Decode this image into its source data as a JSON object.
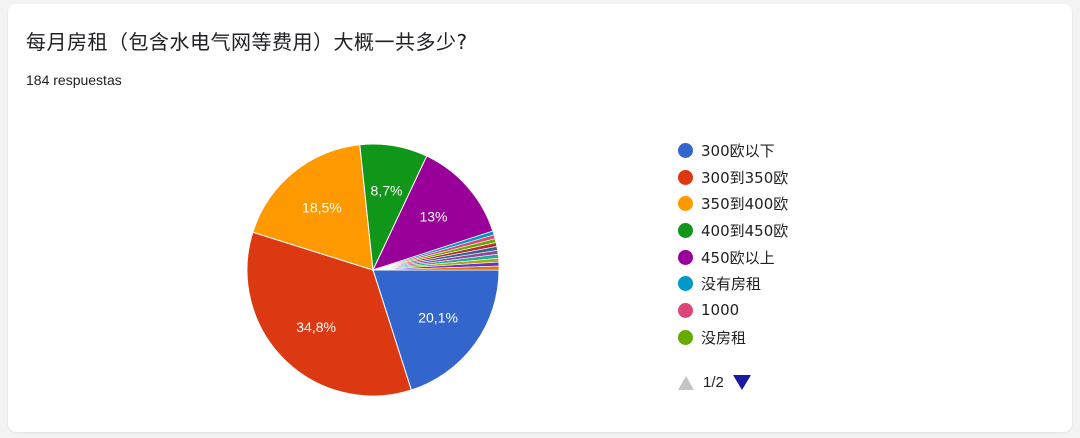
{
  "title": "每月房租（包含水电气网等费用）大概一共多少?",
  "subtitle": "184 respuestas",
  "chart_data": {
    "type": "pie",
    "title": "每月房租（包含水电气网等费用）大概一共多少?",
    "slices": [
      {
        "label": "300欧以下",
        "value": 20.1,
        "display": "20,1%",
        "color": "#3366cc"
      },
      {
        "label": "300到350欧",
        "value": 34.8,
        "display": "34,8%",
        "color": "#dc3912"
      },
      {
        "label": "350到400欧",
        "value": 18.5,
        "display": "18,5%",
        "color": "#ff9900"
      },
      {
        "label": "400到450欧",
        "value": 8.7,
        "display": "8,7%",
        "color": "#109618"
      },
      {
        "label": "450欧以上",
        "value": 13.0,
        "display": "13%",
        "color": "#990099"
      },
      {
        "label": "没有房租",
        "value": 0.5,
        "display": "",
        "color": "#0099c6"
      },
      {
        "label": "1000",
        "value": 0.5,
        "display": "",
        "color": "#dd4477"
      },
      {
        "label": "没房租",
        "value": 0.5,
        "display": "",
        "color": "#66aa00"
      },
      {
        "label": "",
        "value": 0.5,
        "display": "",
        "color": "#b82e2e"
      },
      {
        "label": "",
        "value": 0.5,
        "display": "",
        "color": "#316395"
      },
      {
        "label": "",
        "value": 0.5,
        "display": "",
        "color": "#994499"
      },
      {
        "label": "",
        "value": 0.5,
        "display": "",
        "color": "#22aa99"
      },
      {
        "label": "",
        "value": 0.5,
        "display": "",
        "color": "#aaaa11"
      },
      {
        "label": "",
        "value": 0.5,
        "display": "",
        "color": "#6633cc"
      },
      {
        "label": "",
        "value": 0.5,
        "display": "",
        "color": "#e67300"
      }
    ],
    "legend_position": "right"
  },
  "legend": {
    "items": [
      {
        "label": "300欧以下",
        "color": "#3366cc"
      },
      {
        "label": "300到350欧",
        "color": "#dc3912"
      },
      {
        "label": "350到400欧",
        "color": "#ff9900"
      },
      {
        "label": "400到450欧",
        "color": "#109618"
      },
      {
        "label": "450欧以上",
        "color": "#990099"
      },
      {
        "label": "没有房租",
        "color": "#0099c6"
      },
      {
        "label": "1000",
        "color": "#dd4477"
      },
      {
        "label": "没房租",
        "color": "#66aa00"
      }
    ],
    "page_label": "1/2"
  }
}
